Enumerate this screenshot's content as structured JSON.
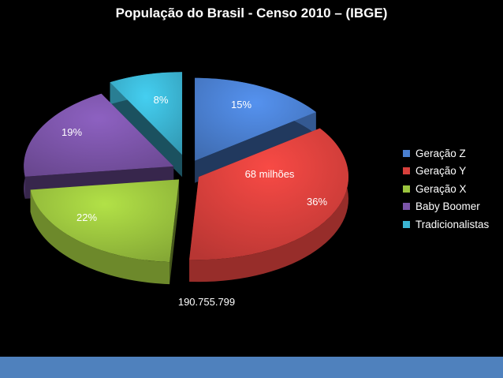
{
  "chart_data": {
    "type": "pie",
    "title": "População do Brasil - Censo 2010 – (IBGE)",
    "slices": [
      {
        "name": "Geração Z",
        "value": 15,
        "label": "15%",
        "color": "#4a7fd0"
      },
      {
        "name": "Geração Y",
        "value": 36,
        "label": "36%",
        "color": "#d8403c"
      },
      {
        "name": "Geração X",
        "value": 22,
        "label": "22%",
        "color": "#9bc43e"
      },
      {
        "name": "Baby Boomer",
        "value": 19,
        "label": "19%",
        "color": "#7b54a8"
      },
      {
        "name": "Tradicionalistas",
        "value": 8,
        "label": "8%",
        "color": "#3bb4d2"
      }
    ],
    "annotations": {
      "generation_y_count": "68 milhões",
      "total_population": "190.755.799"
    },
    "legend_position": "right",
    "style": "3d-exploded"
  }
}
